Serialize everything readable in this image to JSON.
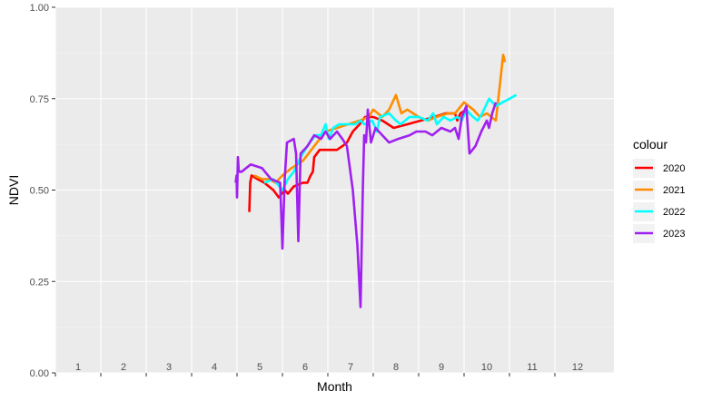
{
  "chart_data": {
    "type": "line",
    "xlabel": "Month",
    "ylabel": "NDVI",
    "xlim": [
      0.5,
      12.8
    ],
    "ylim": [
      0,
      1
    ],
    "x_ticks": [
      1,
      2,
      3,
      4,
      5,
      6,
      7,
      8,
      9,
      10,
      11,
      12
    ],
    "x_tick_labels": [
      "1",
      "2",
      "3",
      "4",
      "5",
      "6",
      "7",
      "8",
      "9",
      "10",
      "11",
      "12"
    ],
    "y_ticks": [
      0,
      0.25,
      0.5,
      0.75,
      1
    ],
    "y_tick_labels": [
      "0.00",
      "0.25",
      "0.50",
      "0.75",
      "1.00"
    ],
    "grid": true,
    "legend": {
      "title": "colour",
      "position": "right"
    },
    "series": [
      {
        "name": "2020",
        "color": "#FF0000",
        "points": [
          [
            4.77,
            0.44
          ],
          [
            4.79,
            0.52
          ],
          [
            4.82,
            0.54
          ],
          [
            4.95,
            0.53
          ],
          [
            5.1,
            0.52
          ],
          [
            5.3,
            0.5
          ],
          [
            5.42,
            0.48
          ],
          [
            5.55,
            0.5
          ],
          [
            5.62,
            0.49
          ],
          [
            5.75,
            0.51
          ],
          [
            5.95,
            0.52
          ],
          [
            6.05,
            0.52
          ],
          [
            6.12,
            0.54
          ],
          [
            6.17,
            0.55
          ],
          [
            6.2,
            0.59
          ],
          [
            6.32,
            0.61
          ],
          [
            6.5,
            0.61
          ],
          [
            6.7,
            0.61
          ],
          [
            6.82,
            0.62
          ],
          [
            6.92,
            0.63
          ],
          [
            7.05,
            0.66
          ],
          [
            7.2,
            0.68
          ],
          [
            7.32,
            0.7
          ],
          [
            7.5,
            0.7
          ],
          [
            7.7,
            0.69
          ],
          [
            7.95,
            0.67
          ],
          [
            8.25,
            0.68
          ],
          [
            8.55,
            0.69
          ],
          [
            8.85,
            0.7
          ],
          [
            9.1,
            0.71
          ],
          [
            9.3,
            0.71
          ],
          [
            9.35,
            0.69
          ],
          [
            9.42,
            0.71
          ],
          [
            9.55,
            0.72
          ]
        ]
      },
      {
        "name": "2021",
        "color": "#FF8C00",
        "points": [
          [
            4.88,
            0.54
          ],
          [
            5.05,
            0.53
          ],
          [
            5.2,
            0.53
          ],
          [
            5.35,
            0.52
          ],
          [
            5.5,
            0.54
          ],
          [
            5.7,
            0.56
          ],
          [
            5.95,
            0.58
          ],
          [
            6.2,
            0.62
          ],
          [
            6.45,
            0.66
          ],
          [
            6.7,
            0.67
          ],
          [
            6.95,
            0.68
          ],
          [
            7.2,
            0.69
          ],
          [
            7.4,
            0.7
          ],
          [
            7.5,
            0.72
          ],
          [
            7.6,
            0.71
          ],
          [
            7.7,
            0.7
          ],
          [
            7.85,
            0.72
          ],
          [
            8.0,
            0.76
          ],
          [
            8.12,
            0.71
          ],
          [
            8.25,
            0.72
          ],
          [
            8.5,
            0.7
          ],
          [
            8.7,
            0.69
          ],
          [
            8.9,
            0.7
          ],
          [
            9.15,
            0.71
          ],
          [
            9.3,
            0.71
          ],
          [
            9.5,
            0.74
          ],
          [
            9.7,
            0.72
          ],
          [
            9.85,
            0.7
          ],
          [
            10.0,
            0.71
          ],
          [
            10.2,
            0.69
          ],
          [
            10.3,
            0.8
          ],
          [
            10.36,
            0.87
          ],
          [
            10.4,
            0.85
          ]
        ]
      },
      {
        "name": "2022",
        "color": "#00FFFF",
        "points": [
          [
            5.1,
            0.52
          ],
          [
            5.3,
            0.53
          ],
          [
            5.5,
            0.5
          ],
          [
            5.62,
            0.53
          ],
          [
            5.75,
            0.55
          ],
          [
            5.9,
            0.59
          ],
          [
            6.05,
            0.62
          ],
          [
            6.22,
            0.65
          ],
          [
            6.35,
            0.65
          ],
          [
            6.45,
            0.68
          ],
          [
            6.52,
            0.64
          ],
          [
            6.62,
            0.67
          ],
          [
            6.75,
            0.68
          ],
          [
            6.9,
            0.68
          ],
          [
            7.1,
            0.68
          ],
          [
            7.22,
            0.69
          ],
          [
            7.3,
            0.68
          ],
          [
            7.48,
            0.69
          ],
          [
            7.58,
            0.66
          ],
          [
            7.65,
            0.7
          ],
          [
            7.85,
            0.71
          ],
          [
            8.0,
            0.69
          ],
          [
            8.1,
            0.68
          ],
          [
            8.3,
            0.7
          ],
          [
            8.5,
            0.7
          ],
          [
            8.7,
            0.69
          ],
          [
            8.82,
            0.71
          ],
          [
            8.9,
            0.68
          ],
          [
            9.05,
            0.7
          ],
          [
            9.2,
            0.69
          ],
          [
            9.35,
            0.7
          ],
          [
            9.45,
            0.69
          ],
          [
            9.55,
            0.72
          ],
          [
            9.62,
            0.71
          ],
          [
            9.7,
            0.7
          ],
          [
            9.8,
            0.69
          ],
          [
            9.9,
            0.71
          ],
          [
            10.05,
            0.75
          ],
          [
            10.2,
            0.73
          ],
          [
            10.35,
            0.74
          ],
          [
            10.5,
            0.75
          ],
          [
            10.65,
            0.76
          ]
        ]
      },
      {
        "name": "2023",
        "color": "#A020F0",
        "points": [
          [
            4.47,
            0.52
          ],
          [
            4.49,
            0.54
          ],
          [
            4.5,
            0.48
          ],
          [
            4.52,
            0.59
          ],
          [
            4.54,
            0.55
          ],
          [
            4.6,
            0.55
          ],
          [
            4.8,
            0.57
          ],
          [
            5.05,
            0.56
          ],
          [
            5.25,
            0.53
          ],
          [
            5.45,
            0.52
          ],
          [
            5.5,
            0.34
          ],
          [
            5.55,
            0.53
          ],
          [
            5.6,
            0.63
          ],
          [
            5.75,
            0.64
          ],
          [
            5.8,
            0.6
          ],
          [
            5.85,
            0.36
          ],
          [
            5.9,
            0.6
          ],
          [
            6.05,
            0.62
          ],
          [
            6.2,
            0.65
          ],
          [
            6.35,
            0.64
          ],
          [
            6.45,
            0.66
          ],
          [
            6.55,
            0.64
          ],
          [
            6.7,
            0.66
          ],
          [
            6.82,
            0.64
          ],
          [
            6.92,
            0.62
          ],
          [
            7.05,
            0.5
          ],
          [
            7.15,
            0.35
          ],
          [
            7.22,
            0.18
          ],
          [
            7.27,
            0.5
          ],
          [
            7.3,
            0.65
          ],
          [
            7.34,
            0.63
          ],
          [
            7.38,
            0.72
          ],
          [
            7.45,
            0.63
          ],
          [
            7.55,
            0.67
          ],
          [
            7.7,
            0.65
          ],
          [
            7.85,
            0.63
          ],
          [
            8.05,
            0.64
          ],
          [
            8.3,
            0.65
          ],
          [
            8.45,
            0.66
          ],
          [
            8.65,
            0.66
          ],
          [
            8.8,
            0.65
          ],
          [
            9.0,
            0.67
          ],
          [
            9.2,
            0.66
          ],
          [
            9.3,
            0.67
          ],
          [
            9.38,
            0.64
          ],
          [
            9.45,
            0.7
          ],
          [
            9.55,
            0.73
          ],
          [
            9.62,
            0.6
          ],
          [
            9.75,
            0.62
          ],
          [
            9.88,
            0.66
          ],
          [
            10.0,
            0.69
          ],
          [
            10.05,
            0.67
          ],
          [
            10.12,
            0.71
          ],
          [
            10.2,
            0.74
          ]
        ]
      }
    ]
  }
}
